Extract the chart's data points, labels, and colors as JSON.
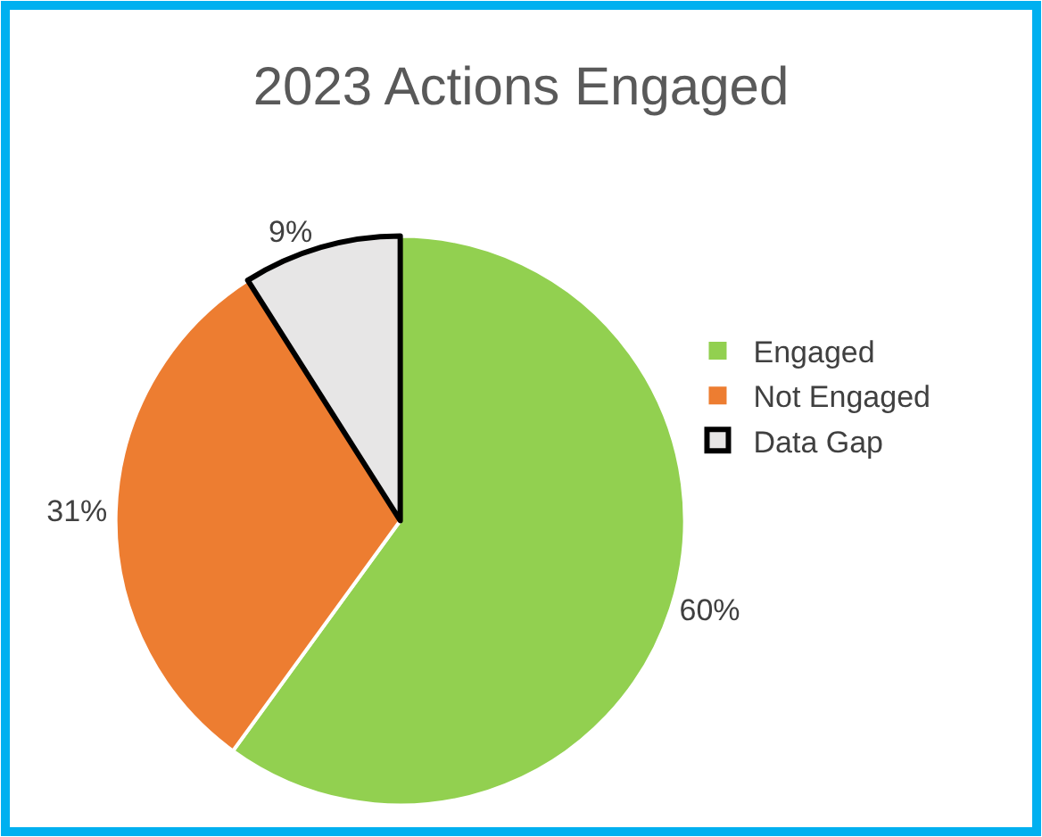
{
  "chart_data": {
    "type": "pie",
    "title": "2023 Actions Engaged",
    "categories": [
      "Engaged",
      "Not Engaged",
      "Data Gap"
    ],
    "values": [
      60,
      31,
      9
    ],
    "colors": [
      "#92d050",
      "#ed7d31",
      "#e7e6e6"
    ],
    "value_labels": [
      "60%",
      "31%",
      "9%"
    ],
    "legend": "right"
  }
}
